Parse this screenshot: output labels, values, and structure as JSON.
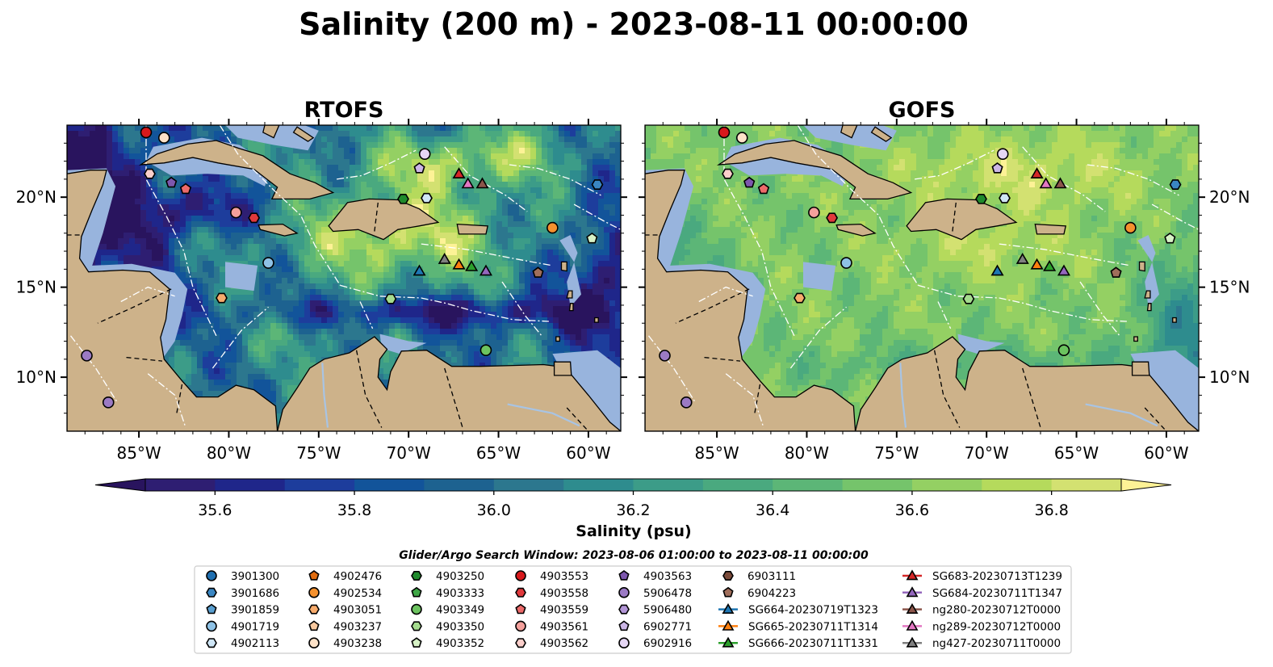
{
  "title": "Salinity (200 m) - 2023-08-11 00:00:00",
  "panels": [
    {
      "id": "rtofs",
      "title": "RTOFS",
      "seed": 7
    },
    {
      "id": "gofs",
      "title": "GOFS",
      "seed": 31
    }
  ],
  "map": {
    "extent": {
      "lon_min": -89,
      "lon_max": -58.2,
      "lat_min": 7,
      "lat_max": 24
    },
    "lon_ticks": [
      -85,
      -80,
      -75,
      -70,
      -65,
      -60
    ],
    "lon_tick_labels": [
      "85°W",
      "80°W",
      "75°W",
      "70°W",
      "65°W",
      "60°W"
    ],
    "lat_ticks": [
      10,
      15,
      20
    ],
    "lat_tick_labels": [
      "10°N",
      "15°N",
      "20°N"
    ],
    "land_color": "#cdb28a",
    "shelf_color": "#98b4dd"
  },
  "colorbar": {
    "label": "Salinity (psu)",
    "min": 35.5,
    "max": 36.9,
    "step": 0.1,
    "ticks": [
      35.6,
      35.8,
      36.0,
      36.2,
      36.4,
      36.6,
      36.8
    ],
    "tick_labels": [
      "35.6",
      "35.8",
      "36.0",
      "36.2",
      "36.4",
      "36.6",
      "36.8"
    ],
    "colors": [
      "#2e1e72",
      "#1f268a",
      "#1d3d9c",
      "#12549a",
      "#1d6290",
      "#2c778e",
      "#2e8c8e",
      "#3c9c88",
      "#4aa97f",
      "#5cb677",
      "#75c46b",
      "#94d063",
      "#b5da5c",
      "#d3e171"
    ],
    "over_color": "#fdf296",
    "under_color": "#29145e"
  },
  "legend": {
    "title": "Glider/Argo Search Window: 2023-08-06 01:00:00 to 2023-08-11 00:00:00",
    "columns": [
      [
        {
          "label": "3901300",
          "marker": "circle",
          "color": "#1f6fb0"
        },
        {
          "label": "3901686",
          "marker": "hexagon",
          "color": "#3a86c2"
        },
        {
          "label": "3901859",
          "marker": "pentagon",
          "color": "#5a9fd0"
        },
        {
          "label": "4901719",
          "marker": "circle",
          "color": "#8ec2e6"
        },
        {
          "label": "4902113",
          "marker": "hexagon",
          "color": "#cfe6f6"
        }
      ],
      [
        {
          "label": "4902476",
          "marker": "pentagon",
          "color": "#e06c10"
        },
        {
          "label": "4902534",
          "marker": "circle",
          "color": "#f5912e"
        },
        {
          "label": "4903051",
          "marker": "hexagon",
          "color": "#f7ab6c"
        },
        {
          "label": "4903237",
          "marker": "pentagon",
          "color": "#f9c99f"
        },
        {
          "label": "4903238",
          "marker": "circle",
          "color": "#fde2c8"
        }
      ],
      [
        {
          "label": "4903250",
          "marker": "hexagon",
          "color": "#1f8a2c"
        },
        {
          "label": "4903333",
          "marker": "pentagon",
          "color": "#3fa746"
        },
        {
          "label": "4903349",
          "marker": "circle",
          "color": "#6cc35f"
        },
        {
          "label": "4903350",
          "marker": "hexagon",
          "color": "#a5dc8e"
        },
        {
          "label": "4903352",
          "marker": "pentagon",
          "color": "#d7f2c6"
        }
      ],
      [
        {
          "label": "4903553",
          "marker": "circle",
          "color": "#d7191c"
        },
        {
          "label": "4903558",
          "marker": "hexagon",
          "color": "#e0393c"
        },
        {
          "label": "4903559",
          "marker": "pentagon",
          "color": "#ec6a6a"
        },
        {
          "label": "4903561",
          "marker": "circle",
          "color": "#f4a09c"
        },
        {
          "label": "4903562",
          "marker": "hexagon",
          "color": "#fbcfcb"
        }
      ],
      [
        {
          "label": "4903563",
          "marker": "pentagon",
          "color": "#7d57ad"
        },
        {
          "label": "5906478",
          "marker": "circle",
          "color": "#9b7ac4"
        },
        {
          "label": "5906480",
          "marker": "hexagon",
          "color": "#b295d6"
        },
        {
          "label": "6902771",
          "marker": "pentagon",
          "color": "#ccb6e6"
        },
        {
          "label": "6902916",
          "marker": "circle",
          "color": "#e5d6f4"
        }
      ],
      [
        {
          "label": "6903111",
          "marker": "hexagon",
          "color": "#7b4b3a"
        },
        {
          "label": "6904223",
          "marker": "pentagon",
          "color": "#a06e5b"
        },
        {
          "label": "SG664-20230719T1323",
          "marker": "triangle",
          "color": "#1f77b4",
          "line": true
        },
        {
          "label": "SG665-20230711T1314",
          "marker": "triangle",
          "color": "#ff7f0e",
          "line": true
        },
        {
          "label": "SG666-20230711T1331",
          "marker": "triangle",
          "color": "#2ca02c",
          "line": true
        }
      ],
      [
        {
          "label": "SG683-20230713T1239",
          "marker": "triangle",
          "color": "#d62728",
          "line": true
        },
        {
          "label": "SG684-20230711T1347",
          "marker": "triangle",
          "color": "#9467bd",
          "line": true
        },
        {
          "label": "ng280-20230712T0000",
          "marker": "triangle",
          "color": "#8c564b",
          "line": true
        },
        {
          "label": "ng289-20230712T0000",
          "marker": "triangle",
          "color": "#e377c2",
          "line": true
        },
        {
          "label": "ng427-20230711T0000",
          "marker": "triangle",
          "color": "#7f7f7f",
          "line": true
        }
      ]
    ]
  },
  "observations": [
    {
      "id": "4903553",
      "lon": -84.6,
      "lat": 23.6
    },
    {
      "id": "4903238",
      "lon": -83.6,
      "lat": 23.3
    },
    {
      "id": "4903562",
      "lon": -84.4,
      "lat": 21.3
    },
    {
      "id": "4903563",
      "lon": -83.2,
      "lat": 20.8
    },
    {
      "id": "4903559",
      "lon": -82.4,
      "lat": 20.45
    },
    {
      "id": "4903561",
      "lon": -79.6,
      "lat": 19.15
    },
    {
      "id": "4903558",
      "lon": -78.6,
      "lat": 18.85
    },
    {
      "id": "4901719",
      "lon": -77.8,
      "lat": 16.35
    },
    {
      "id": "4903051",
      "lon": -80.4,
      "lat": 14.4
    },
    {
      "id": "5906478",
      "lon": -87.9,
      "lat": 11.2
    },
    {
      "id": "5906478",
      "lon": -86.7,
      "lat": 8.6
    },
    {
      "id": "6902916",
      "lon": -69.1,
      "lat": 22.4
    },
    {
      "id": "6902771",
      "lon": -69.4,
      "lat": 21.6
    },
    {
      "id": "4903250",
      "lon": -70.3,
      "lat": 19.9
    },
    {
      "id": "4902113",
      "lon": -69.0,
      "lat": 19.95
    },
    {
      "id": "4903350",
      "lon": -71.0,
      "lat": 14.35
    },
    {
      "id": "4903349",
      "lon": -65.7,
      "lat": 11.5
    },
    {
      "id": "3901686",
      "lon": -59.5,
      "lat": 20.7
    },
    {
      "id": "4902534",
      "lon": -62.0,
      "lat": 18.3
    },
    {
      "id": "4903352",
      "lon": -59.8,
      "lat": 17.7
    },
    {
      "id": "6904223",
      "lon": -62.8,
      "lat": 15.8
    },
    {
      "id": "SG683-20230713T1239",
      "lon": -67.2,
      "lat": 21.3
    },
    {
      "id": "ng289-20230712T0000",
      "lon": -66.7,
      "lat": 20.75
    },
    {
      "id": "ng280-20230712T0000",
      "lon": -65.9,
      "lat": 20.75
    },
    {
      "id": "SG664-20230719T1323",
      "lon": -69.4,
      "lat": 15.9
    },
    {
      "id": "ng427-20230711T0000",
      "lon": -68.0,
      "lat": 16.55
    },
    {
      "id": "SG665-20230711T1314",
      "lon": -67.2,
      "lat": 16.25
    },
    {
      "id": "SG666-20230711T1331",
      "lon": -66.5,
      "lat": 16.15
    },
    {
      "id": "SG684-20230711T1347",
      "lon": -65.7,
      "lat": 15.9
    }
  ]
}
